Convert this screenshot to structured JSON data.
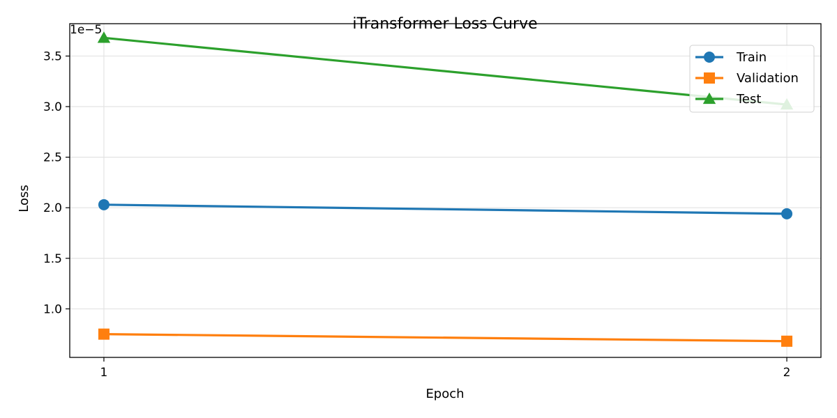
{
  "chart_data": {
    "type": "line",
    "title": "iTransformer Loss Curve",
    "xlabel": "Epoch",
    "ylabel": "Loss",
    "y_scale_label": "1e−5",
    "categories": [
      "1",
      "2"
    ],
    "x": [
      1,
      2
    ],
    "xlim": [
      0.95,
      2.05
    ],
    "ylim": [
      5.2e-06,
      3.82e-05
    ],
    "yticks": [
      1e-05,
      1.5e-05,
      2e-05,
      2.5e-05,
      3e-05,
      3.5e-05
    ],
    "ytick_labels": [
      "1.0",
      "1.5",
      "2.0",
      "2.5",
      "3.0",
      "3.5"
    ],
    "grid": true,
    "legend_position": "top-right",
    "series": [
      {
        "name": "Train",
        "color": "#1f77b4",
        "marker": "circle",
        "values": [
          2.03e-05,
          1.94e-05
        ]
      },
      {
        "name": "Validation",
        "color": "#ff7f0e",
        "marker": "square",
        "values": [
          7.5e-06,
          6.8e-06
        ]
      },
      {
        "name": "Test",
        "color": "#2ca02c",
        "marker": "triangle",
        "values": [
          3.68e-05,
          3.02e-05
        ]
      }
    ]
  }
}
